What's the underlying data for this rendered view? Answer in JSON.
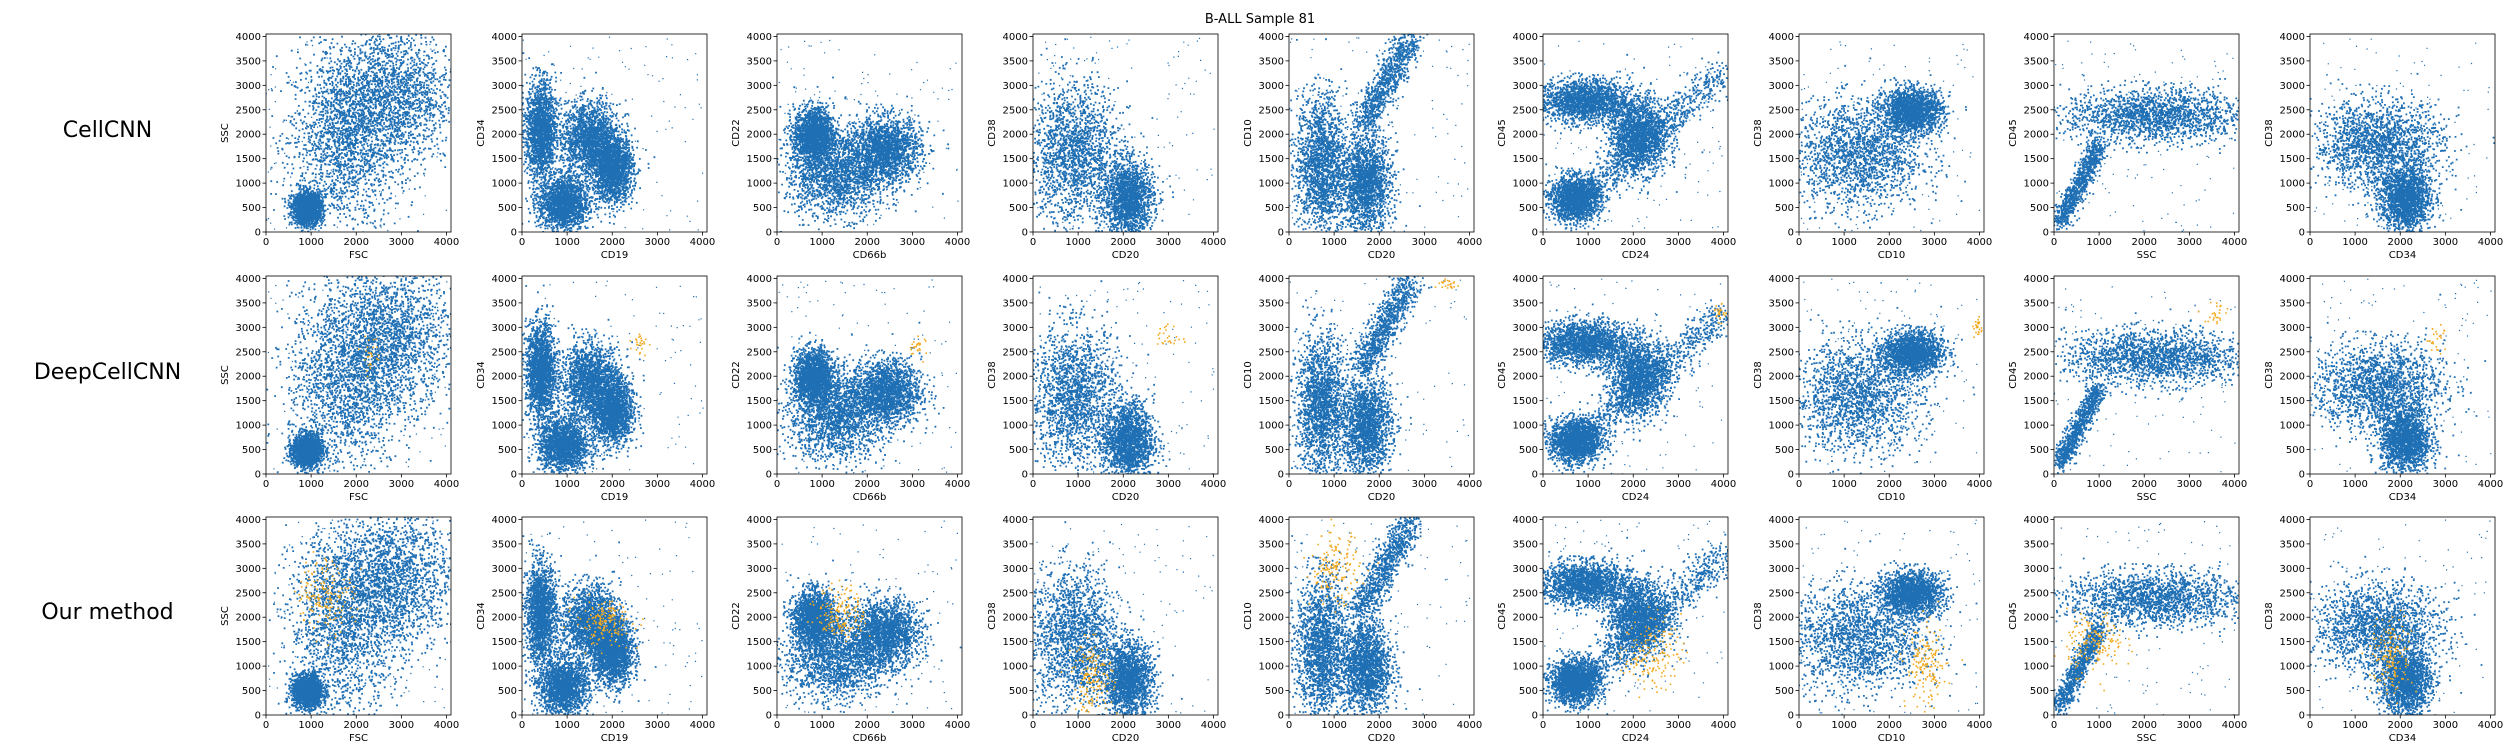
{
  "figure": {
    "title": "B-ALL Sample 81"
  },
  "legend": {
    "colors": {
      "normal": "#1f6fb4",
      "highlight": "#f2a91f"
    }
  },
  "chart_data": {
    "type": "scatter",
    "title": "B-ALL Sample 81",
    "rows": [
      "CellCNN",
      "DeepCellCNN",
      "Our method"
    ],
    "grid": false,
    "xlim": [
      0,
      4100
    ],
    "ylim": [
      0,
      4050
    ],
    "xticks": [
      0,
      1000,
      2000,
      3000,
      4000
    ],
    "yticks": [
      0,
      500,
      1000,
      1500,
      2000,
      2500,
      3000,
      3500,
      4000
    ],
    "panels": [
      {
        "xlabel": "FSC",
        "ylabel": "SSC"
      },
      {
        "xlabel": "CD19",
        "ylabel": "CD34"
      },
      {
        "xlabel": "CD66b",
        "ylabel": "CD22"
      },
      {
        "xlabel": "CD20",
        "ylabel": "CD38"
      },
      {
        "xlabel": "CD20",
        "ylabel": "CD10"
      },
      {
        "xlabel": "CD24",
        "ylabel": "CD45"
      },
      {
        "xlabel": "CD10",
        "ylabel": "CD38"
      },
      {
        "xlabel": "SSC",
        "ylabel": "CD45"
      },
      {
        "xlabel": "CD34",
        "ylabel": "CD38"
      }
    ],
    "series": [
      {
        "color": "#1f6fb4"
      },
      {
        "color": "#f2a91f"
      }
    ]
  }
}
